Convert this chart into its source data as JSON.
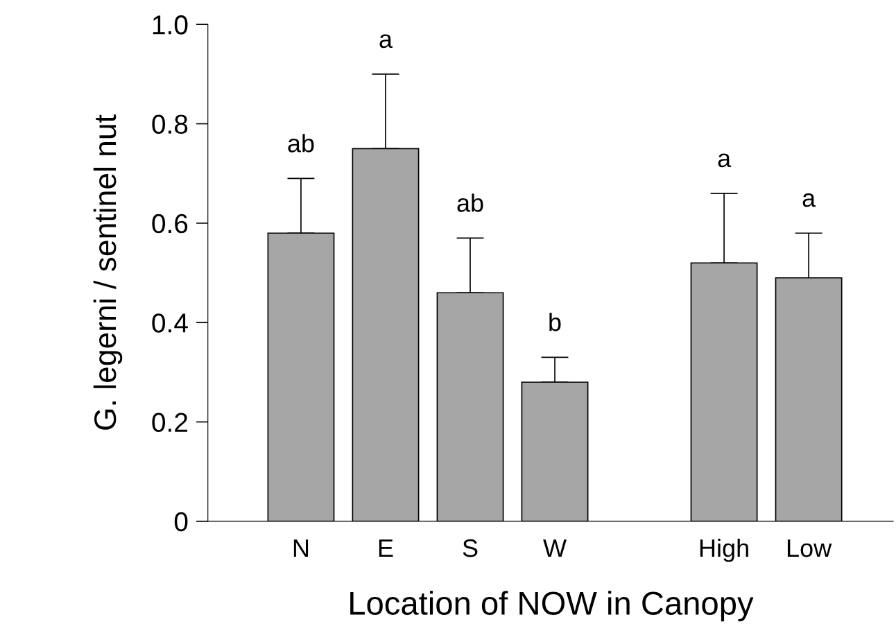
{
  "chart_data": {
    "type": "bar",
    "xlabel": "Location of NOW in Canopy",
    "ylabel": "G. legerni / sentinel nut",
    "categories": [
      "N",
      "E",
      "S",
      "W",
      null,
      "High",
      "Low"
    ],
    "values": [
      0.58,
      0.75,
      0.46,
      0.28,
      null,
      0.52,
      0.49
    ],
    "errors": [
      [
        0.58,
        0.69
      ],
      [
        0.75,
        0.9
      ],
      [
        0.46,
        0.57
      ],
      [
        0.28,
        0.33
      ],
      null,
      [
        0.52,
        0.66
      ],
      [
        0.49,
        0.58
      ]
    ],
    "color": "#a6a6a6",
    "ylim": [
      0,
      1.0
    ],
    "yticks": [
      0,
      0.2,
      0.4,
      0.6,
      0.8,
      {
        "value": 1.0,
        "label": "1.0"
      }
    ],
    "grid": false,
    "annotations": [
      {
        "text": "ab",
        "x": "N",
        "y": 0.69
      },
      {
        "text": "a",
        "x": "E",
        "y": 0.9
      },
      {
        "text": "ab",
        "x": "S",
        "y": 0.57
      },
      {
        "text": "b",
        "x": "W",
        "y": 0.33
      },
      {
        "text": "a",
        "x": "High",
        "y": 0.66
      },
      {
        "text": "a",
        "x": "Low",
        "y": 0.58
      }
    ]
  }
}
